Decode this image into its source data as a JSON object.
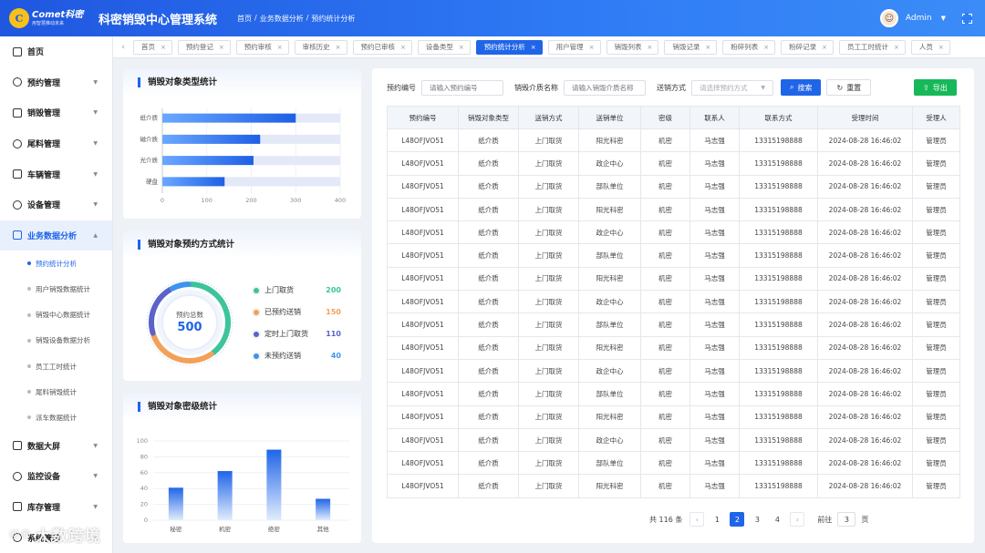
{
  "header": {
    "logo_brand": "Comet科密",
    "logo_slogan": "用智慧推动未来",
    "system_title": "科密销毁中心管理系统",
    "breadcrumb": [
      "首页",
      "/",
      "业务数据分析",
      "/",
      "预约统计分析"
    ],
    "user_name": "Admin",
    "avatar_icon": "avatar-icon",
    "fullscreen_icon": "fullscreen-icon"
  },
  "sidebar": {
    "menu_top": [
      {
        "label": "首页",
        "icon": "home-icon",
        "expandable": false
      },
      {
        "label": "预约管理",
        "icon": "clock-icon",
        "expandable": true
      },
      {
        "label": "销毁管理",
        "icon": "doc-icon",
        "expandable": true
      },
      {
        "label": "尾料管理",
        "icon": "box-icon",
        "expandable": true
      },
      {
        "label": "车辆管理",
        "icon": "car-icon",
        "expandable": true
      },
      {
        "label": "设备管理",
        "icon": "device-icon",
        "expandable": true
      }
    ],
    "active_menu": {
      "label": "业务数据分析",
      "icon": "chart-icon"
    },
    "sub_items": [
      "预约统计分析",
      "用户销毁数据统计",
      "销毁中心数据统计",
      "销毁设备数据分析",
      "员工工时统计",
      "尾料销毁统计",
      "派车数据统计"
    ],
    "menu_bottom": [
      {
        "label": "数据大屏",
        "icon": "screen-icon"
      },
      {
        "label": "监控设备",
        "icon": "camera-icon"
      },
      {
        "label": "库存管理",
        "icon": "stack-icon"
      },
      {
        "label": "系统管理",
        "icon": "settings-icon"
      }
    ]
  },
  "tabs": [
    "首页",
    "预约登记",
    "预约审核",
    "审核历史",
    "预约已审核",
    "设备类型",
    "预约统计分析",
    "用户管理",
    "销毁列表",
    "销毁记录",
    "粉碎列表",
    "粉碎记录",
    "员工工时统计",
    "人员"
  ],
  "active_tab_index": 6,
  "card1": {
    "title": "销毁对象类型统计",
    "chart_data": {
      "type": "bar",
      "orientation": "horizontal",
      "categories": [
        "纸介质",
        "磁介质",
        "光介质",
        "硬盘"
      ],
      "values": [
        300,
        220,
        205,
        140
      ],
      "xlim": [
        0,
        400
      ],
      "xticks": [
        0,
        100,
        200,
        300,
        400
      ],
      "background_bar": true,
      "grid": true
    }
  },
  "card2": {
    "title": "销毁对象预约方式统计",
    "total_label": "预约总数",
    "total_value": "500",
    "chart_data": {
      "type": "pie",
      "style": "ring",
      "slices": [
        {
          "name": "上门取货",
          "value": 200,
          "color": "#3cc49a"
        },
        {
          "name": "已预约送销",
          "value": 150,
          "color": "#f3a05a"
        },
        {
          "name": "定时上门取货",
          "value": 110,
          "color": "#5b62c9"
        },
        {
          "name": "未预约送销",
          "value": 40,
          "color": "#3d93ee"
        }
      ]
    }
  },
  "card3": {
    "title": "销毁对象密级统计",
    "chart_data": {
      "type": "bar",
      "categories": [
        "秘密",
        "机密",
        "绝密",
        "其他"
      ],
      "values": [
        41,
        62,
        89,
        27
      ],
      "ylim": [
        0,
        100
      ],
      "yticks": [
        0,
        20,
        40,
        60,
        80,
        100
      ],
      "grid": true
    }
  },
  "filter": {
    "fields": [
      {
        "label": "预约编号",
        "placeholder": "请输入预约编号"
      },
      {
        "label": "销毁介质名称",
        "placeholder": "请输入销毁介质名称"
      },
      {
        "label": "送销方式",
        "placeholder": "请选择预约方式"
      }
    ],
    "search_label": "搜索",
    "reset_label": "重置",
    "export_label": "导出"
  },
  "table": {
    "columns": [
      "预约编号",
      "销毁对象类型",
      "送销方式",
      "送销单位",
      "密级",
      "联系人",
      "联系方式",
      "受理时间",
      "受理人"
    ],
    "rows": [
      [
        "L48OFJVO51",
        "纸介质",
        "上门取货",
        "阳光科密",
        "机密",
        "马志强",
        "13315198888",
        "2024-08-28 16:46:02",
        "管理员"
      ],
      [
        "L48OFJVO51",
        "纸介质",
        "上门取货",
        "政企中心",
        "机密",
        "马志强",
        "13315198888",
        "2024-08-28 16:46:02",
        "管理员"
      ],
      [
        "L48OFJVO51",
        "纸介质",
        "上门取货",
        "部队单位",
        "机密",
        "马志强",
        "13315198888",
        "2024-08-28 16:46:02",
        "管理员"
      ],
      [
        "L48OFJVO51",
        "纸介质",
        "上门取货",
        "阳光科密",
        "机密",
        "马志强",
        "13315198888",
        "2024-08-28 16:46:02",
        "管理员"
      ],
      [
        "L48OFJVO51",
        "纸介质",
        "上门取货",
        "政企中心",
        "机密",
        "马志强",
        "13315198888",
        "2024-08-28 16:46:02",
        "管理员"
      ],
      [
        "L48OFJVO51",
        "纸介质",
        "上门取货",
        "部队单位",
        "机密",
        "马志强",
        "13315198888",
        "2024-08-28 16:46:02",
        "管理员"
      ],
      [
        "L48OFJVO51",
        "纸介质",
        "上门取货",
        "阳光科密",
        "机密",
        "马志强",
        "13315198888",
        "2024-08-28 16:46:02",
        "管理员"
      ],
      [
        "L48OFJVO51",
        "纸介质",
        "上门取货",
        "政企中心",
        "机密",
        "马志强",
        "13315198888",
        "2024-08-28 16:46:02",
        "管理员"
      ],
      [
        "L48OFJVO51",
        "纸介质",
        "上门取货",
        "部队单位",
        "机密",
        "马志强",
        "13315198888",
        "2024-08-28 16:46:02",
        "管理员"
      ],
      [
        "L48OFJVO51",
        "纸介质",
        "上门取货",
        "阳光科密",
        "机密",
        "马志强",
        "13315198888",
        "2024-08-28 16:46:02",
        "管理员"
      ],
      [
        "L48OFJVO51",
        "纸介质",
        "上门取货",
        "政企中心",
        "机密",
        "马志强",
        "13315198888",
        "2024-08-28 16:46:02",
        "管理员"
      ],
      [
        "L48OFJVO51",
        "纸介质",
        "上门取货",
        "部队单位",
        "机密",
        "马志强",
        "13315198888",
        "2024-08-28 16:46:02",
        "管理员"
      ],
      [
        "L48OFJVO51",
        "纸介质",
        "上门取货",
        "阳光科密",
        "机密",
        "马志强",
        "13315198888",
        "2024-08-28 16:46:02",
        "管理员"
      ],
      [
        "L48OFJVO51",
        "纸介质",
        "上门取货",
        "政企中心",
        "机密",
        "马志强",
        "13315198888",
        "2024-08-28 16:46:02",
        "管理员"
      ],
      [
        "L48OFJVO51",
        "纸介质",
        "上门取货",
        "部队单位",
        "机密",
        "马志强",
        "13315198888",
        "2024-08-28 16:46:02",
        "管理员"
      ],
      [
        "L48OFJVO51",
        "纸介质",
        "上门取货",
        "阳光科密",
        "机密",
        "马志强",
        "13315198888",
        "2024-08-28 16:46:02",
        "管理员"
      ]
    ]
  },
  "pagination": {
    "total_text": "共 116 条",
    "pages": [
      "1",
      "2",
      "3",
      "4"
    ],
    "current_page": "2",
    "goto_label": "前往",
    "goto_value": "3",
    "page_unit": "页"
  },
  "watermark": "大数跨境",
  "colors": {
    "primary": "#1f65e8",
    "success": "#17b85a",
    "bar_light": "#e3e9f7"
  }
}
